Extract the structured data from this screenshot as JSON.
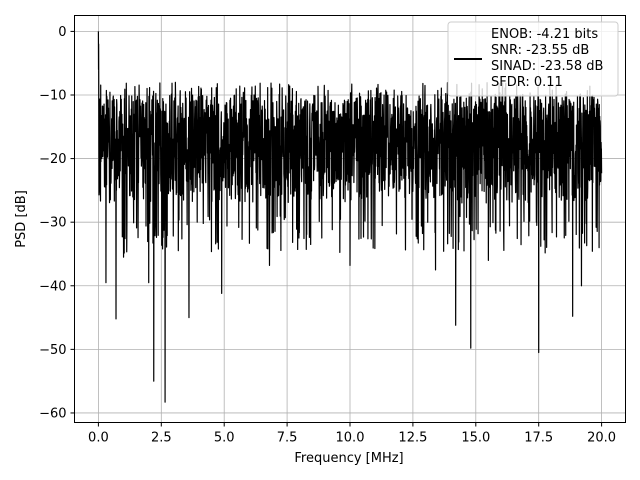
{
  "chart_data": {
    "type": "line",
    "xlabel": "Frequency [MHz]",
    "ylabel": "PSD [dB]",
    "xlim": [
      -0.95,
      20.95
    ],
    "ylim": [
      -61.5,
      2.5
    ],
    "xticks": [
      0.0,
      2.5,
      5.0,
      7.5,
      10.0,
      12.5,
      15.0,
      17.5,
      20.0
    ],
    "xtick_labels": [
      "0.0",
      "2.5",
      "5.0",
      "7.5",
      "10.0",
      "12.5",
      "15.0",
      "17.5",
      "20.0"
    ],
    "yticks": [
      0,
      -10,
      -20,
      -30,
      -40,
      -50,
      -60
    ],
    "ytick_labels": [
      "0",
      "−10",
      "−20",
      "−30",
      "−40",
      "−50",
      "−60"
    ],
    "grid": true,
    "legend_position": "top-right",
    "series": [
      {
        "color": "#000000",
        "legend_lines": [
          "ENOB: -4.21 bits",
          "SNR: -23.55 dB",
          "SINAD: -23.58 dB",
          "SFDR: 0.11"
        ],
        "x_range": [
          0.0,
          20.0
        ],
        "typical_band": [
          -27,
          -10
        ],
        "peak": {
          "x": 0.0,
          "y": 0.0
        },
        "notable_dips": [
          {
            "x": 0.3,
            "y": -39.5
          },
          {
            "x": 0.7,
            "y": -45.2
          },
          {
            "x": 1.0,
            "y": -35.5
          },
          {
            "x": 2.0,
            "y": -39.5
          },
          {
            "x": 2.2,
            "y": -55.0
          },
          {
            "x": 2.65,
            "y": -58.3
          },
          {
            "x": 3.6,
            "y": -45.0
          },
          {
            "x": 4.9,
            "y": -41.2
          },
          {
            "x": 6.8,
            "y": -36.8
          },
          {
            "x": 10.0,
            "y": -36.8
          },
          {
            "x": 13.4,
            "y": -37.5
          },
          {
            "x": 14.2,
            "y": -46.2
          },
          {
            "x": 14.8,
            "y": -49.8
          },
          {
            "x": 15.5,
            "y": -36.0
          },
          {
            "x": 17.5,
            "y": -50.5
          },
          {
            "x": 18.85,
            "y": -44.8
          },
          {
            "x": 19.2,
            "y": -40.0
          },
          {
            "x": 19.9,
            "y": -34.0
          }
        ]
      }
    ]
  }
}
